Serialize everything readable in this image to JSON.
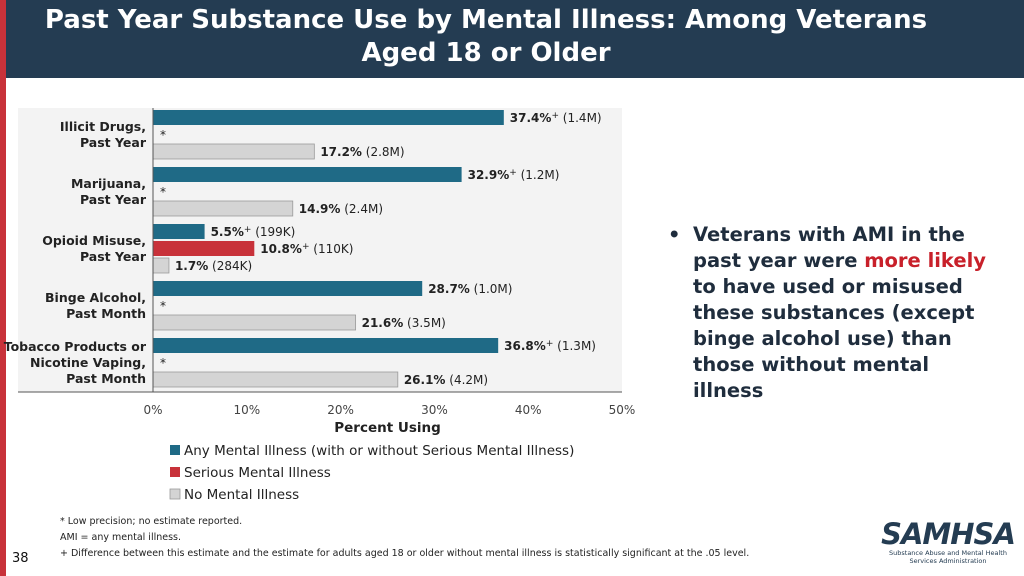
{
  "title": "Past Year Substance Use by Mental Illness: Among Veterans Aged 18 or Older",
  "chart_data": {
    "type": "bar",
    "orientation": "horizontal",
    "xlabel": "Percent Using",
    "xlim": [
      0,
      50
    ],
    "xticks": [
      "0%",
      "10%",
      "20%",
      "30%",
      "40%",
      "50%"
    ],
    "grid": false,
    "legend_position": "bottom",
    "groups": [
      {
        "label": [
          "Illicit Drugs,",
          "Past Year"
        ],
        "bars": [
          {
            "series": "ami",
            "value": 37.4,
            "value_label": "37.4%",
            "sup": "+",
            "count": "(1.4M)"
          },
          {
            "series": "smi",
            "value": null,
            "star": "*"
          },
          {
            "series": "none",
            "value": 17.2,
            "value_label": "17.2%",
            "sup": "",
            "count": "(2.8M)"
          }
        ]
      },
      {
        "label": [
          "Marijuana,",
          "Past Year"
        ],
        "bars": [
          {
            "series": "ami",
            "value": 32.9,
            "value_label": "32.9%",
            "sup": "+",
            "count": "(1.2M)"
          },
          {
            "series": "smi",
            "value": null,
            "star": "*"
          },
          {
            "series": "none",
            "value": 14.9,
            "value_label": "14.9%",
            "sup": "",
            "count": "(2.4M)"
          }
        ]
      },
      {
        "label": [
          "Opioid Misuse,",
          "Past Year"
        ],
        "bars": [
          {
            "series": "ami",
            "value": 5.5,
            "value_label": "5.5%",
            "sup": "+",
            "count": "(199K)"
          },
          {
            "series": "smi",
            "value": 10.8,
            "value_label": "10.8%",
            "sup": "+",
            "count": "(110K)"
          },
          {
            "series": "none",
            "value": 1.7,
            "value_label": "1.7%",
            "sup": "",
            "count": "(284K)"
          }
        ]
      },
      {
        "label": [
          "Binge Alcohol,",
          "Past Month"
        ],
        "bars": [
          {
            "series": "ami",
            "value": 28.7,
            "value_label": "28.7%",
            "sup": "",
            "count": "(1.0M)"
          },
          {
            "series": "smi",
            "value": null,
            "star": "*"
          },
          {
            "series": "none",
            "value": 21.6,
            "value_label": "21.6%",
            "sup": "",
            "count": "(3.5M)"
          }
        ]
      },
      {
        "label": [
          "Tobacco Products or",
          "Nicotine Vaping,",
          "Past Month"
        ],
        "bars": [
          {
            "series": "ami",
            "value": 36.8,
            "value_label": "36.8%",
            "sup": "+",
            "count": "(1.3M)"
          },
          {
            "series": "smi",
            "value": null,
            "star": "*"
          },
          {
            "series": "none",
            "value": 26.1,
            "value_label": "26.1%",
            "sup": "",
            "count": "(4.2M)"
          }
        ]
      }
    ],
    "series": [
      {
        "key": "ami",
        "name": "Any Mental Illness (with or without Serious Mental Illness)",
        "color": "#1f6a86"
      },
      {
        "key": "smi",
        "name": "Serious Mental Illness",
        "color": "#c8323a"
      },
      {
        "key": "none",
        "name": "No Mental Illness",
        "color": "#d4d4d4"
      }
    ]
  },
  "bullet": {
    "marker": "•",
    "text_before": "Veterans with AMI in the past year were ",
    "highlight": "more likely",
    "text_after": " to have used or misused these substances (except binge alcohol use) than those without mental illness"
  },
  "footnotes": [
    "* Low precision; no estimate reported.",
    "AMI = any mental illness.",
    "+ Difference between this estimate and the estimate for adults aged 18 or older without mental illness is statistically significant at the .05 level."
  ],
  "page_number": "38",
  "logo": {
    "word": "SAMHSA",
    "subtitle": [
      "Substance Abuse and Mental Health",
      "Services Administration"
    ]
  }
}
